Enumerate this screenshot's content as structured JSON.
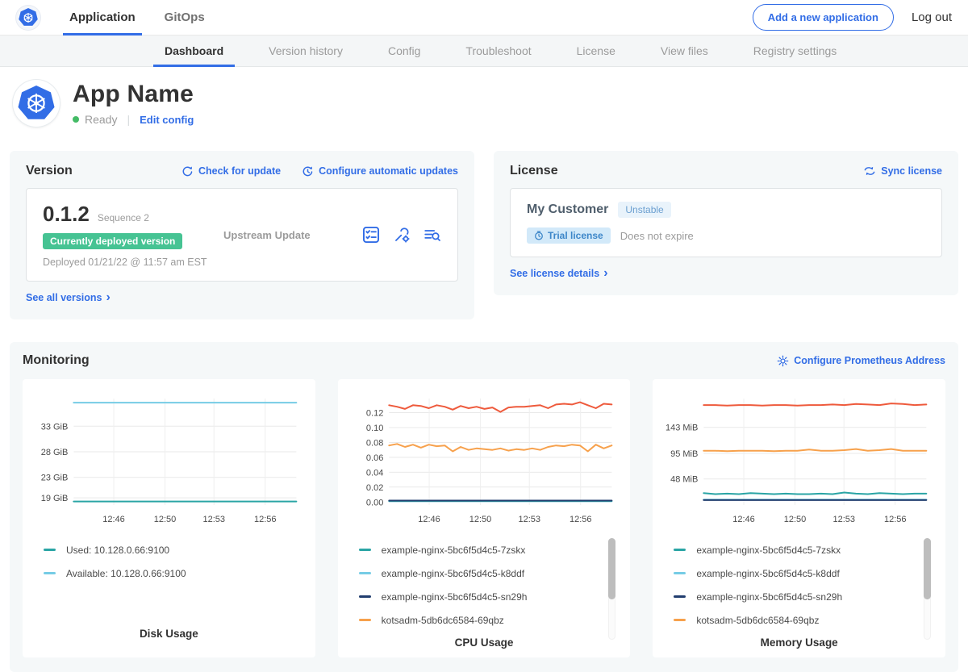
{
  "topnav": {
    "tabs": [
      {
        "label": "Application",
        "active": true
      },
      {
        "label": "GitOps",
        "active": false
      }
    ],
    "add_app_button": "Add a new application",
    "logout": "Log out"
  },
  "subnav": {
    "tabs": [
      {
        "label": "Dashboard",
        "active": true
      },
      {
        "label": "Version history",
        "active": false
      },
      {
        "label": "Config",
        "active": false
      },
      {
        "label": "Troubleshoot",
        "active": false
      },
      {
        "label": "License",
        "active": false
      },
      {
        "label": "View files",
        "active": false
      },
      {
        "label": "Registry settings",
        "active": false
      }
    ]
  },
  "app_header": {
    "title": "App Name",
    "status": "Ready",
    "edit_config": "Edit config"
  },
  "version_card": {
    "title": "Version",
    "check_for_update": "Check for update",
    "configure_updates": "Configure automatic updates",
    "version": "0.1.2",
    "sequence": "Sequence 2",
    "deployed_badge": "Currently deployed version",
    "deployed_at": "Deployed 01/21/22 @ 11:57 am EST",
    "source": "Upstream Update",
    "see_all": "See all versions"
  },
  "license_card": {
    "title": "License",
    "sync": "Sync license",
    "customer": "My Customer",
    "channel": "Unstable",
    "trial_badge": "Trial license",
    "expiry": "Does not expire",
    "details": "See license details"
  },
  "monitoring": {
    "title": "Monitoring",
    "configure_prometheus": "Configure Prometheus Address"
  },
  "colors": {
    "accent_blue": "#326de6",
    "deployed_green": "#46c393",
    "teal_series": "#2aa5a5",
    "lightblue_series": "#76cce5",
    "navy_series": "#223e6f",
    "orange_series": "#f7a14c",
    "red_series": "#ee5a3c"
  },
  "chart_data": [
    {
      "type": "line",
      "title": "Disk Usage",
      "ylim": [
        17.6,
        38.4
      ],
      "yticks": [
        {
          "value": 33,
          "label": "33 GiB"
        },
        {
          "value": 28,
          "label": "28 GiB"
        },
        {
          "value": 23,
          "label": "23 GiB"
        },
        {
          "value": 19,
          "label": "19 GiB"
        }
      ],
      "xticks": [
        {
          "pos": 0.18,
          "label": "12:46"
        },
        {
          "pos": 0.41,
          "label": "12:50"
        },
        {
          "pos": 0.63,
          "label": "12:53"
        },
        {
          "pos": 0.86,
          "label": "12:56"
        }
      ],
      "series": [
        {
          "name": "Available: 10.128.0.66:9100",
          "color": "#76cce5",
          "values": [
            37.6,
            37.6,
            37.6,
            37.6
          ]
        },
        {
          "name": "Used: 10.128.0.66:9100",
          "color": "#2aa5a5",
          "values": [
            18.3,
            18.3,
            18.3,
            18.3
          ]
        }
      ],
      "legend": [
        {
          "label": "Used: 10.128.0.66:9100",
          "color": "#2aa5a5"
        },
        {
          "label": "Available: 10.128.0.66:9100",
          "color": "#76cce5"
        }
      ],
      "legend_scrollbar": false
    },
    {
      "type": "line",
      "title": "CPU Usage",
      "ylim": [
        -0.004,
        0.139
      ],
      "yticks": [
        {
          "value": 0.12,
          "label": "0.12"
        },
        {
          "value": 0.1,
          "label": "0.10"
        },
        {
          "value": 0.08,
          "label": "0.08"
        },
        {
          "value": 0.06,
          "label": "0.06"
        },
        {
          "value": 0.04,
          "label": "0.04"
        },
        {
          "value": 0.02,
          "label": "0.02"
        },
        {
          "value": 0.0,
          "label": "0.00"
        }
      ],
      "xticks": [
        {
          "pos": 0.18,
          "label": "12:46"
        },
        {
          "pos": 0.41,
          "label": "12:50"
        },
        {
          "pos": 0.63,
          "label": "12:53"
        },
        {
          "pos": 0.86,
          "label": "12:56"
        }
      ],
      "series": [
        {
          "name": "",
          "color": "#ee5a3c",
          "values": [
            0.13,
            0.128,
            0.125,
            0.13,
            0.129,
            0.126,
            0.13,
            0.128,
            0.124,
            0.129,
            0.126,
            0.128,
            0.125,
            0.127,
            0.121,
            0.127,
            0.128,
            0.128,
            0.129,
            0.13,
            0.126,
            0.131,
            0.132,
            0.131,
            0.134,
            0.13,
            0.126,
            0.132,
            0.131
          ]
        },
        {
          "name": "kotsadm-5db6dc6584-69qbz",
          "color": "#f7a14c",
          "values": [
            0.076,
            0.078,
            0.074,
            0.077,
            0.073,
            0.077,
            0.075,
            0.076,
            0.068,
            0.074,
            0.07,
            0.072,
            0.071,
            0.07,
            0.072,
            0.069,
            0.071,
            0.07,
            0.072,
            0.07,
            0.074,
            0.076,
            0.075,
            0.077,
            0.076,
            0.068,
            0.077,
            0.072,
            0.076
          ]
        },
        {
          "name": "example-nginx-5bc6f5d4c5-k8ddf",
          "color": "#76cce5",
          "values": [
            0.001,
            0.001
          ]
        },
        {
          "name": "example-nginx-5bc6f5d4c5-7zskx",
          "color": "#2aa5a5",
          "values": [
            0.0014,
            0.0014
          ]
        },
        {
          "name": "example-nginx-5bc6f5d4c5-sn29h",
          "color": "#223e6f",
          "values": [
            0.002,
            0.002
          ]
        }
      ],
      "legend": [
        {
          "label": "example-nginx-5bc6f5d4c5-7zskx",
          "color": "#2aa5a5"
        },
        {
          "label": "example-nginx-5bc6f5d4c5-k8ddf",
          "color": "#76cce5"
        },
        {
          "label": "example-nginx-5bc6f5d4c5-sn29h",
          "color": "#223e6f"
        },
        {
          "label": "kotsadm-5db6dc6584-69qbz",
          "color": "#f7a14c"
        }
      ],
      "legend_scrollbar": true
    },
    {
      "type": "line",
      "title": "Memory Usage",
      "ylim": [
        0,
        196
      ],
      "yticks": [
        {
          "value": 143,
          "label": "143 MiB"
        },
        {
          "value": 95,
          "label": "95 MiB"
        },
        {
          "value": 48,
          "label": "48 MiB"
        }
      ],
      "xticks": [
        {
          "pos": 0.18,
          "label": "12:46"
        },
        {
          "pos": 0.41,
          "label": "12:50"
        },
        {
          "pos": 0.63,
          "label": "12:53"
        },
        {
          "pos": 0.86,
          "label": "12:56"
        }
      ],
      "series": [
        {
          "name": "",
          "color": "#ee5a3c",
          "values": [
            184,
            184,
            183,
            184,
            184,
            183,
            184,
            184,
            183,
            184,
            184,
            185,
            184,
            186,
            185,
            184,
            187,
            186,
            184,
            185
          ]
        },
        {
          "name": "kotsadm-5db6dc6584-69qbz",
          "color": "#f7a14c",
          "values": [
            100,
            100,
            99,
            100,
            100,
            100,
            99,
            100,
            100,
            102,
            100,
            100,
            101,
            103,
            100,
            101,
            103,
            100,
            100,
            100
          ]
        },
        {
          "name": "example-nginx-5bc6f5d4c5-k8ddf",
          "color": "#76cce5",
          "values": [
            10,
            10
          ]
        },
        {
          "name": "example-nginx-5bc6f5d4c5-7zskx",
          "color": "#2aa5a5",
          "values": [
            22,
            20,
            21,
            20,
            22,
            21,
            20,
            21,
            20,
            20,
            21,
            20,
            23,
            21,
            20,
            22,
            21,
            20,
            21,
            21
          ]
        },
        {
          "name": "example-nginx-5bc6f5d4c5-sn29h",
          "color": "#223e6f",
          "values": [
            9,
            9
          ]
        }
      ],
      "legend": [
        {
          "label": "example-nginx-5bc6f5d4c5-7zskx",
          "color": "#2aa5a5"
        },
        {
          "label": "example-nginx-5bc6f5d4c5-k8ddf",
          "color": "#76cce5"
        },
        {
          "label": "example-nginx-5bc6f5d4c5-sn29h",
          "color": "#223e6f"
        },
        {
          "label": "kotsadm-5db6dc6584-69qbz",
          "color": "#f7a14c"
        }
      ],
      "legend_scrollbar": true
    }
  ]
}
